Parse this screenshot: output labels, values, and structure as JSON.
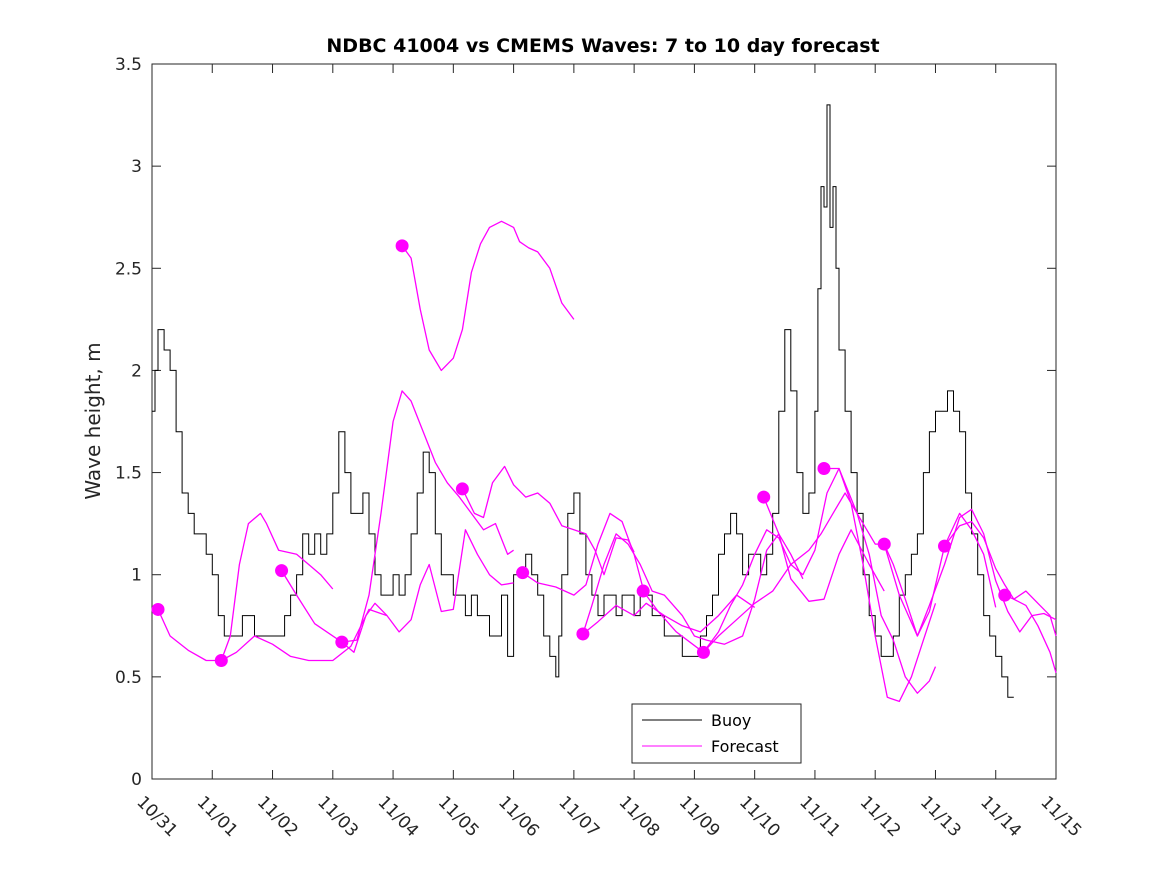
{
  "colors": {
    "buoy": "#000000",
    "forecast": "#ff00ff",
    "axis": "#262626"
  },
  "chart_data": {
    "type": "line",
    "title": "NDBC 41004 vs CMEMS Waves: 7 to 10 day forecast",
    "xlabel": "",
    "ylabel": "Wave height, m",
    "xlim": [
      0,
      15
    ],
    "ylim": [
      0,
      3.5
    ],
    "x_units": "days since 10/31 00:00",
    "x_ticks": [
      0,
      1,
      2,
      3,
      4,
      5,
      6,
      7,
      8,
      9,
      10,
      11,
      12,
      13,
      14,
      15
    ],
    "x_tick_labels": [
      "10/31",
      "11/01",
      "11/02",
      "11/03",
      "11/04",
      "11/05",
      "11/06",
      "11/07",
      "11/08",
      "11/09",
      "11/10",
      "11/11",
      "11/12",
      "11/13",
      "11/14",
      "11/15"
    ],
    "y_ticks": [
      0,
      0.5,
      1,
      1.5,
      2,
      2.5,
      3,
      3.5
    ],
    "y_tick_labels": [
      "0",
      "0.5",
      "1",
      "1.5",
      "2",
      "2.5",
      "3",
      "3.5"
    ],
    "legend": {
      "position": "bottom-center",
      "entries": [
        "Buoy",
        "Forecast"
      ]
    },
    "buoy": {
      "name": "Buoy",
      "x": [
        0,
        0.05,
        0.1,
        0.15,
        0.2,
        0.3,
        0.4,
        0.5,
        0.6,
        0.7,
        0.8,
        0.9,
        1.0,
        1.1,
        1.2,
        1.3,
        1.4,
        1.5,
        1.6,
        1.7,
        1.8,
        1.9,
        2.0,
        2.1,
        2.2,
        2.3,
        2.4,
        2.5,
        2.6,
        2.7,
        2.8,
        2.9,
        3.0,
        3.1,
        3.2,
        3.3,
        3.4,
        3.5,
        3.6,
        3.7,
        3.8,
        3.9,
        4.0,
        4.1,
        4.2,
        4.3,
        4.4,
        4.5,
        4.6,
        4.7,
        4.8,
        4.9,
        5.0,
        5.1,
        5.2,
        5.3,
        5.4,
        5.5,
        5.6,
        5.7,
        5.8,
        5.9,
        6.0,
        6.1,
        6.2,
        6.3,
        6.4,
        6.5,
        6.6,
        6.7,
        6.75,
        6.8,
        6.9,
        7.0,
        7.1,
        7.2,
        7.3,
        7.4,
        7.5,
        7.6,
        7.7,
        7.8,
        7.9,
        8.0,
        8.1,
        8.2,
        8.3,
        8.4,
        8.5,
        8.6,
        8.7,
        8.8,
        8.9,
        9.0,
        9.1,
        9.2,
        9.3,
        9.4,
        9.5,
        9.6,
        9.7,
        9.8,
        9.9,
        10.0,
        10.1,
        10.2,
        10.3,
        10.4,
        10.5,
        10.6,
        10.7,
        10.8,
        10.9,
        11.0,
        11.05,
        11.1,
        11.15,
        11.2,
        11.25,
        11.3,
        11.35,
        11.4,
        11.5,
        11.6,
        11.7,
        11.8,
        11.9,
        12.0,
        12.1,
        12.2,
        12.3,
        12.4,
        12.5,
        12.6,
        12.7,
        12.8,
        12.9,
        13.0,
        13.1,
        13.2,
        13.3,
        13.4,
        13.5,
        13.6,
        13.7,
        13.8,
        13.9,
        14.0,
        14.1,
        14.2,
        14.3
      ],
      "y": [
        1.8,
        2.0,
        2.2,
        2.2,
        2.1,
        2.0,
        1.7,
        1.4,
        1.3,
        1.2,
        1.2,
        1.1,
        1.0,
        0.8,
        0.7,
        0.7,
        0.7,
        0.8,
        0.8,
        0.7,
        0.7,
        0.7,
        0.7,
        0.7,
        0.8,
        0.9,
        1.0,
        1.2,
        1.1,
        1.2,
        1.1,
        1.2,
        1.4,
        1.7,
        1.5,
        1.3,
        1.3,
        1.4,
        1.2,
        1.0,
        0.9,
        0.9,
        1.0,
        0.9,
        1.0,
        1.2,
        1.4,
        1.6,
        1.5,
        1.2,
        1.0,
        1.0,
        0.9,
        0.9,
        0.8,
        0.9,
        0.8,
        0.8,
        0.7,
        0.7,
        0.9,
        0.6,
        1.0,
        1.0,
        1.1,
        1.0,
        0.9,
        0.7,
        0.6,
        0.5,
        0.7,
        1.0,
        1.3,
        1.4,
        1.2,
        1.0,
        0.9,
        0.8,
        0.9,
        0.9,
        0.8,
        0.9,
        0.9,
        0.8,
        0.9,
        0.9,
        0.8,
        0.8,
        0.7,
        0.7,
        0.7,
        0.6,
        0.6,
        0.6,
        0.7,
        0.8,
        0.9,
        1.1,
        1.2,
        1.3,
        1.2,
        1.0,
        1.1,
        1.1,
        1.0,
        1.1,
        1.3,
        1.8,
        2.2,
        1.9,
        1.5,
        1.3,
        1.4,
        1.8,
        2.4,
        2.9,
        2.8,
        3.3,
        2.7,
        2.9,
        2.5,
        2.1,
        1.8,
        1.5,
        1.3,
        1.0,
        0.8,
        0.7,
        0.6,
        0.6,
        0.7,
        0.9,
        1.0,
        1.1,
        1.2,
        1.5,
        1.7,
        1.8,
        1.8,
        1.9,
        1.8,
        1.7,
        1.4,
        1.2,
        1.0,
        0.8,
        0.7,
        0.6,
        0.5,
        0.4,
        0.4
      ]
    },
    "forecasts": [
      {
        "name": "Forecast",
        "x": [
          0.1,
          0.3,
          0.6,
          0.9,
          1.15
        ],
        "y": [
          0.83,
          0.7,
          0.63,
          0.58,
          0.58
        ]
      },
      {
        "name": "Forecast",
        "x": [
          1.15,
          1.3,
          1.45,
          1.6,
          1.8,
          1.9,
          2.1,
          2.4,
          2.6,
          2.8,
          3.0
        ],
        "y": [
          0.58,
          0.7,
          1.05,
          1.25,
          1.3,
          1.25,
          1.12,
          1.1,
          1.05,
          1.0,
          0.93
        ]
      },
      {
        "name": "Forecast",
        "x": [
          1.15,
          1.4,
          1.7,
          2.0,
          2.3,
          2.6,
          3.0,
          3.3,
          3.6,
          3.9
        ],
        "y": [
          0.58,
          0.62,
          0.7,
          0.66,
          0.6,
          0.58,
          0.58,
          0.65,
          0.83,
          0.8
        ]
      },
      {
        "name": "Forecast",
        "x": [
          2.15,
          2.4,
          2.7,
          3.15
        ],
        "y": [
          1.02,
          0.9,
          0.76,
          0.67
        ]
      },
      {
        "name": "Forecast",
        "x": [
          3.15,
          3.35,
          3.55,
          3.7,
          3.9,
          4.1,
          4.3,
          4.45,
          4.6,
          4.8,
          5.0,
          5.2,
          5.4,
          5.6,
          5.8,
          6.0
        ],
        "y": [
          0.67,
          0.62,
          0.8,
          0.86,
          0.8,
          0.72,
          0.78,
          0.95,
          1.05,
          0.82,
          0.83,
          1.22,
          1.1,
          1.0,
          0.95,
          0.96
        ]
      },
      {
        "name": "Forecast",
        "x": [
          3.15,
          3.4,
          3.6,
          3.8,
          4.0,
          4.15,
          4.3,
          4.5,
          4.7,
          4.9,
          5.1,
          5.3,
          5.5,
          5.7,
          5.9,
          6.0
        ],
        "y": [
          0.67,
          0.68,
          0.9,
          1.3,
          1.75,
          1.9,
          1.85,
          1.7,
          1.55,
          1.45,
          1.38,
          1.3,
          1.22,
          1.25,
          1.1,
          1.12
        ]
      },
      {
        "name": "Forecast",
        "x": [
          4.15,
          4.3,
          4.45,
          4.6,
          4.8,
          5.0,
          5.15,
          5.3,
          5.45,
          5.6,
          5.8,
          6.0,
          6.1,
          6.25,
          6.4,
          6.6,
          6.8,
          7.0
        ],
        "y": [
          2.61,
          2.55,
          2.3,
          2.1,
          2.0,
          2.06,
          2.2,
          2.48,
          2.62,
          2.7,
          2.73,
          2.7,
          2.63,
          2.6,
          2.58,
          2.5,
          2.33,
          2.25
        ]
      },
      {
        "name": "Forecast",
        "x": [
          5.15,
          5.35,
          5.5,
          5.65,
          5.85,
          6.0,
          6.2,
          6.4,
          6.6,
          6.8,
          7.0,
          7.2,
          7.35,
          7.5,
          7.7,
          7.9,
          8.0
        ],
        "y": [
          1.42,
          1.3,
          1.28,
          1.45,
          1.53,
          1.44,
          1.38,
          1.4,
          1.35,
          1.24,
          1.22,
          1.2,
          1.12,
          1.0,
          1.18,
          1.17,
          1.11
        ]
      },
      {
        "name": "Forecast",
        "x": [
          6.15,
          6.4,
          6.7,
          7.0,
          7.2,
          7.4,
          7.6,
          7.8,
          8.0,
          8.15
        ],
        "y": [
          1.01,
          0.96,
          0.94,
          0.9,
          0.95,
          1.15,
          1.3,
          1.26,
          1.1,
          0.93
        ]
      },
      {
        "name": "Forecast",
        "x": [
          7.15,
          7.4,
          7.7,
          8.0,
          8.2,
          8.5,
          8.8,
          9.1,
          9.4,
          9.7,
          10.0
        ],
        "y": [
          0.71,
          0.77,
          0.85,
          0.8,
          0.86,
          0.8,
          0.75,
          0.72,
          0.8,
          0.9,
          0.84
        ]
      },
      {
        "name": "Forecast",
        "x": [
          7.15,
          7.3,
          7.5,
          7.7,
          7.9,
          8.1,
          8.3,
          8.5,
          8.8,
          9.0,
          9.2,
          9.5,
          9.8,
          10.0,
          10.2,
          10.4,
          10.6,
          10.8
        ],
        "y": [
          0.71,
          0.85,
          1.05,
          1.2,
          1.15,
          1.05,
          0.92,
          0.9,
          0.8,
          0.7,
          0.68,
          0.66,
          0.7,
          0.88,
          1.12,
          1.2,
          1.1,
          0.98
        ]
      },
      {
        "name": "Forecast",
        "x": [
          8.15,
          8.4,
          8.7,
          9.15
        ],
        "y": [
          0.92,
          0.82,
          0.72,
          0.62
        ]
      },
      {
        "name": "Forecast",
        "x": [
          9.15,
          9.4,
          9.6,
          9.8,
          10.0,
          10.2,
          10.4,
          10.6,
          10.8,
          11.0,
          11.2,
          11.4,
          11.6,
          11.8,
          12.0,
          12.2,
          12.4,
          12.6,
          12.8,
          13.0
        ],
        "y": [
          0.62,
          0.72,
          0.85,
          0.95,
          1.1,
          1.22,
          1.18,
          1.05,
          1.0,
          1.12,
          1.4,
          1.52,
          1.35,
          1.05,
          0.7,
          0.4,
          0.38,
          0.5,
          0.68,
          0.86
        ]
      },
      {
        "name": "Forecast",
        "x": [
          9.15,
          9.4,
          9.7,
          10.0,
          10.3,
          10.6,
          10.9,
          11.1,
          11.3,
          11.5,
          11.7,
          11.9,
          12.1,
          12.3,
          12.5,
          12.7,
          12.9,
          13.0
        ],
        "y": [
          0.62,
          0.7,
          0.78,
          0.86,
          0.92,
          1.05,
          1.12,
          1.2,
          1.3,
          1.4,
          1.3,
          1.1,
          0.8,
          0.68,
          0.5,
          0.42,
          0.48,
          0.55
        ]
      },
      {
        "name": "Forecast",
        "x": [
          10.15,
          10.4,
          10.6,
          10.9,
          11.15,
          11.4,
          11.6,
          11.9,
          12.15
        ],
        "y": [
          1.38,
          1.2,
          0.98,
          0.87,
          0.88,
          1.1,
          1.22,
          1.05,
          0.92
        ]
      },
      {
        "name": "Forecast",
        "x": [
          11.15,
          11.4,
          11.7,
          12.0,
          12.15,
          12.3,
          12.5,
          12.7,
          12.9,
          13.15,
          13.4,
          13.6,
          13.8,
          14.0
        ],
        "y": [
          1.52,
          1.52,
          1.3,
          1.15,
          1.15,
          1.05,
          0.88,
          0.7,
          0.82,
          1.14,
          1.3,
          1.22,
          1.1,
          0.84
        ]
      },
      {
        "name": "Forecast",
        "x": [
          12.15,
          12.4,
          12.7,
          12.9,
          13.15,
          13.4,
          13.6,
          13.8,
          14.0,
          14.2,
          14.4,
          14.6,
          14.8,
          15.0
        ],
        "y": [
          1.15,
          0.9,
          0.7,
          0.85,
          1.05,
          1.28,
          1.32,
          1.2,
          0.97,
          0.82,
          0.72,
          0.8,
          0.81,
          0.78
        ]
      },
      {
        "name": "Forecast",
        "x": [
          13.15,
          13.4,
          13.6,
          13.8,
          14.0,
          14.15,
          14.3,
          14.5,
          14.7,
          14.9,
          15.0
        ],
        "y": [
          1.14,
          1.24,
          1.26,
          1.18,
          1.03,
          0.95,
          0.88,
          0.85,
          0.75,
          0.62,
          0.52
        ]
      },
      {
        "name": "Forecast",
        "x": [
          14.15,
          14.3,
          14.5,
          14.7,
          14.9,
          15.0
        ],
        "y": [
          0.9,
          0.88,
          0.92,
          0.86,
          0.8,
          0.7
        ]
      }
    ],
    "forecast_start_markers": {
      "x": [
        0.1,
        1.15,
        2.15,
        3.15,
        4.15,
        5.15,
        6.15,
        7.15,
        8.15,
        9.15,
        10.15,
        11.15,
        12.15,
        13.15,
        14.15
      ],
      "y": [
        0.83,
        0.58,
        1.02,
        0.67,
        2.61,
        1.42,
        1.01,
        0.71,
        0.92,
        0.62,
        1.38,
        1.52,
        1.15,
        1.14,
        0.9
      ]
    }
  }
}
